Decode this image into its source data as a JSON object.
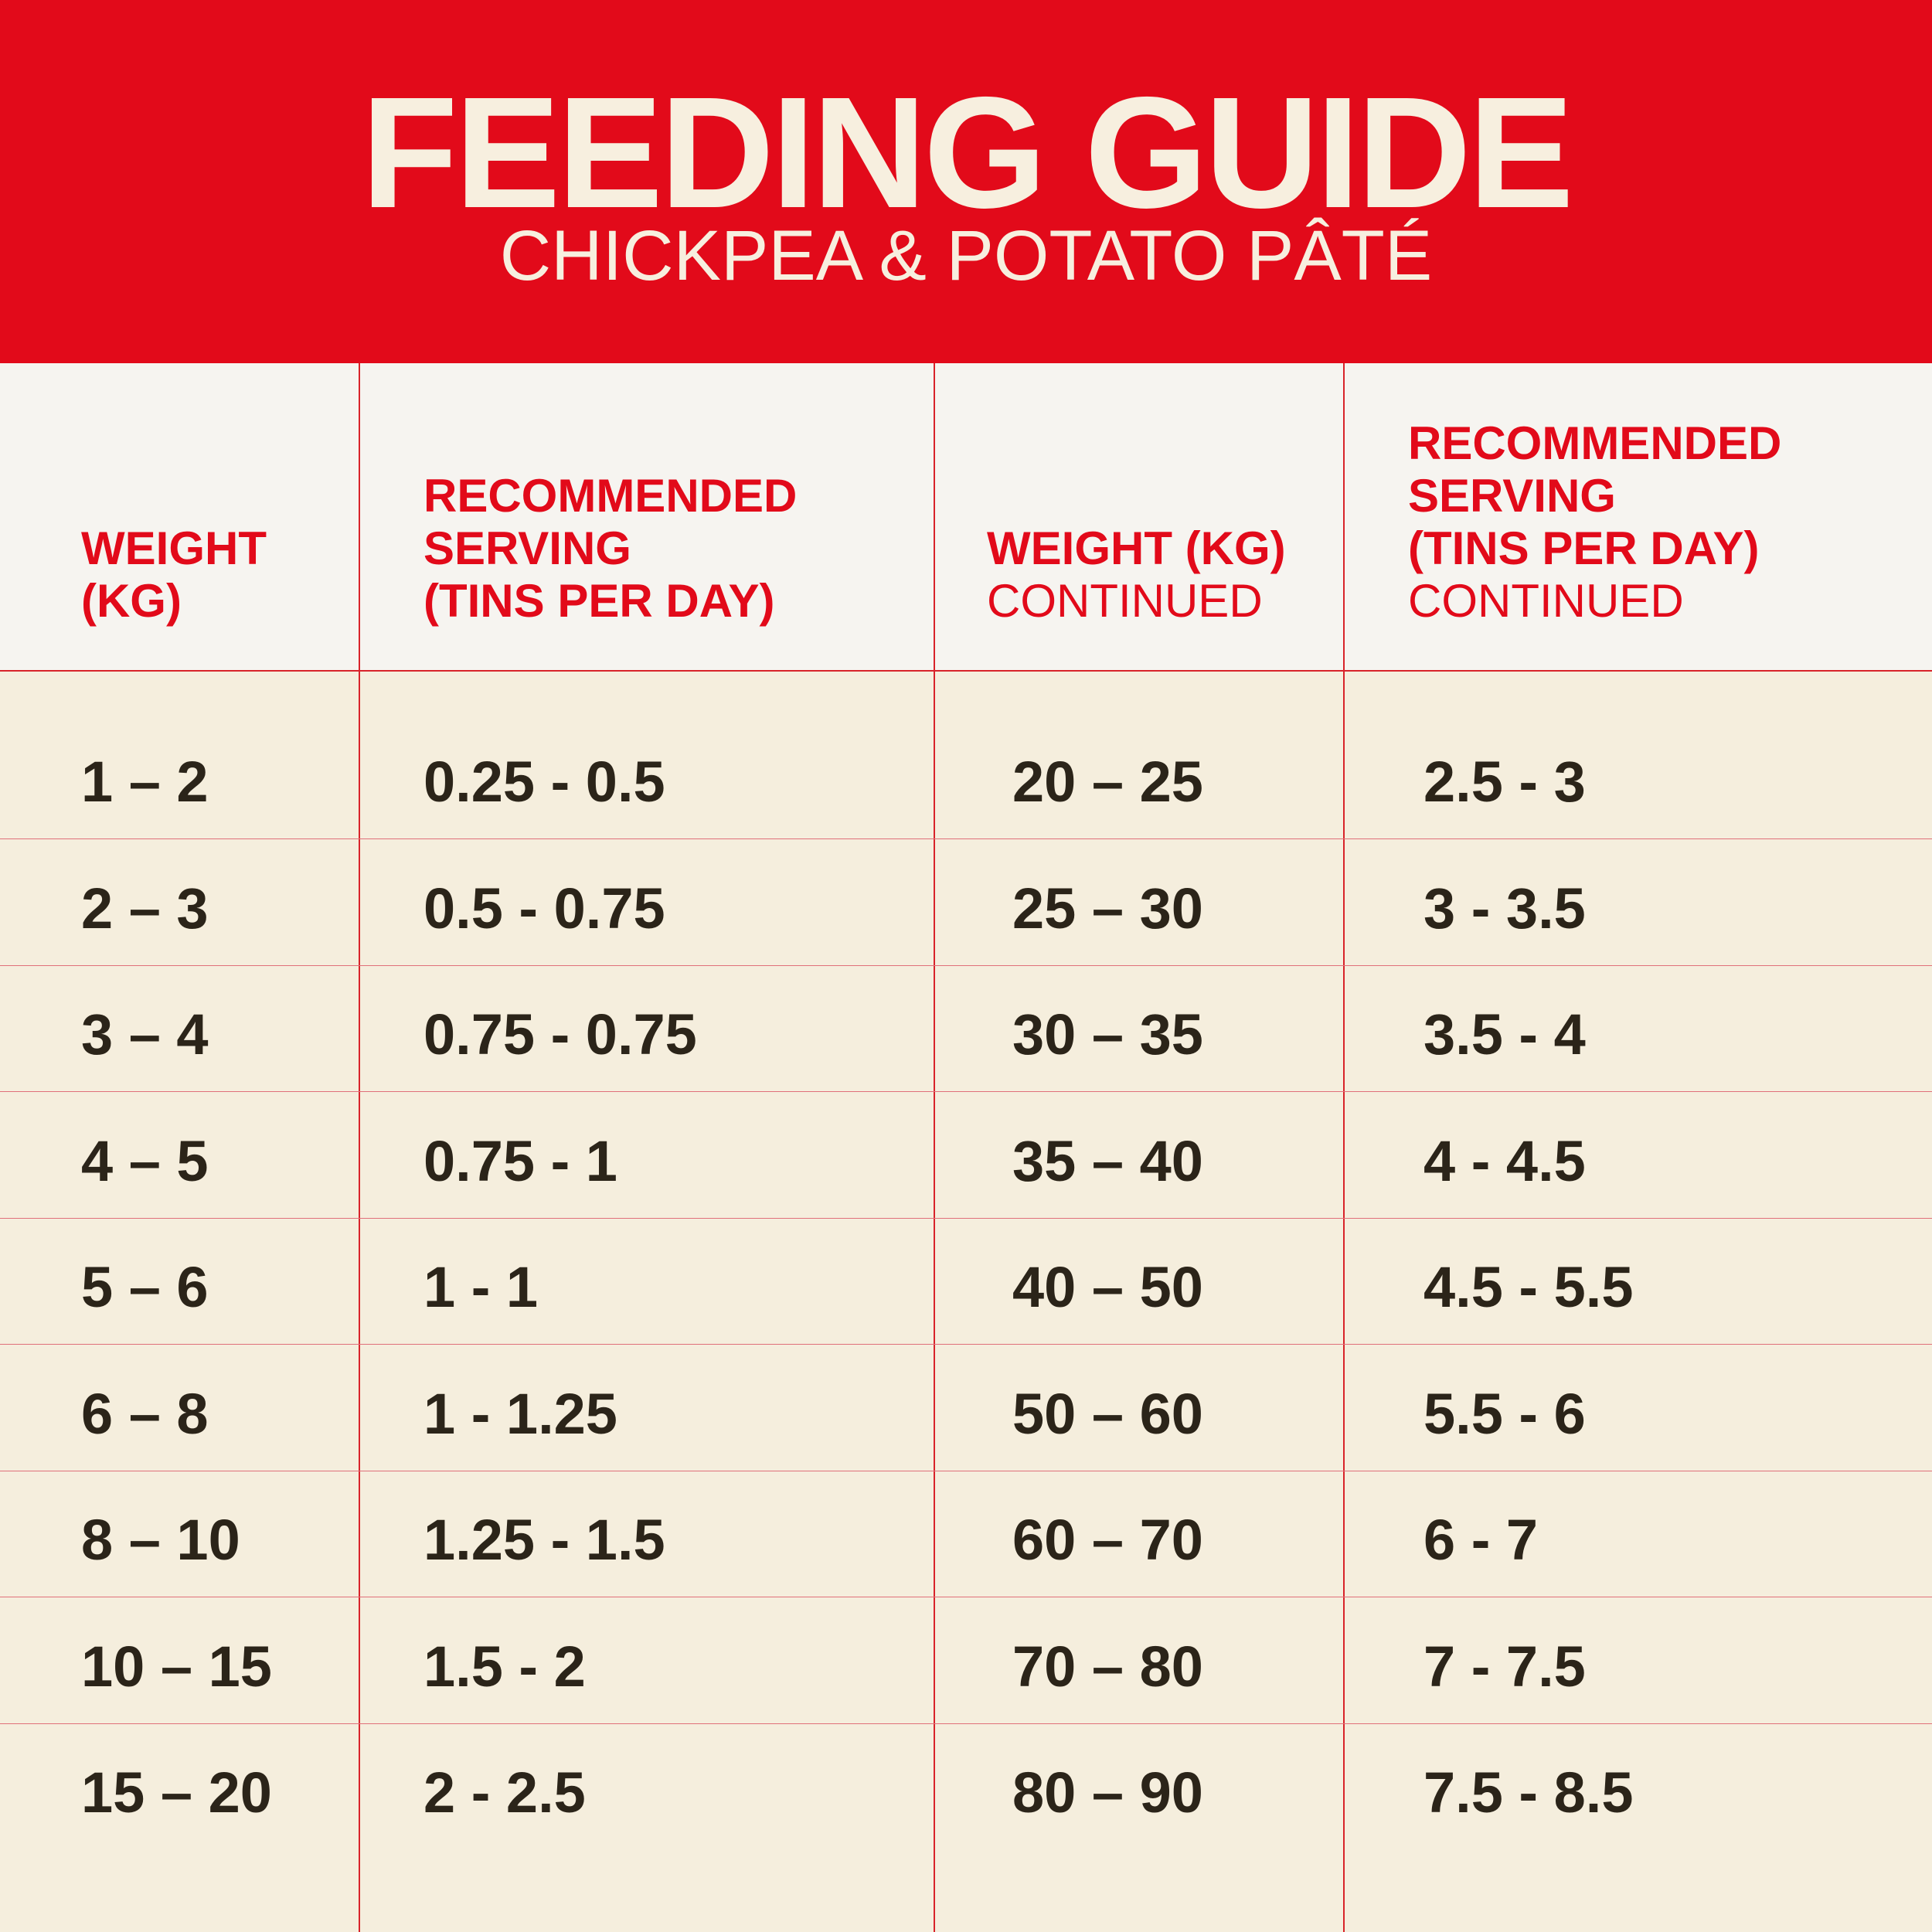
{
  "banner": {
    "title": "FEEDING GUIDE",
    "subtitle": "CHICKPEA & POTATO PÂTÉ"
  },
  "headers": {
    "col1": [
      "WEIGHT",
      "(KG)"
    ],
    "col2": [
      "RECOMMENDED",
      "SERVING",
      "(TINS PER DAY)"
    ],
    "col3": [
      "WEIGHT (KG)"
    ],
    "col3_continued": "CONTINUED",
    "col4": [
      "RECOMMENDED",
      "SERVING",
      "(TINS PER DAY)"
    ],
    "col4_continued": "CONTINUED"
  },
  "rows": [
    {
      "w1": "1 – 2",
      "s1": "0.25 - 0.5",
      "w2": "20 – 25",
      "s2": "2.5 - 3"
    },
    {
      "w1": "2 – 3",
      "s1": "0.5 - 0.75",
      "w2": "25 – 30",
      "s2": "3 - 3.5"
    },
    {
      "w1": "3 – 4",
      "s1": "0.75 - 0.75",
      "w2": "30 – 35",
      "s2": "3.5 - 4"
    },
    {
      "w1": "4 – 5",
      "s1": "0.75 - 1",
      "w2": "35 – 40",
      "s2": "4 - 4.5"
    },
    {
      "w1": "5 – 6",
      "s1": "1 - 1",
      "w2": "40 – 50",
      "s2": "4.5 - 5.5"
    },
    {
      "w1": "6 – 8",
      "s1": "1 - 1.25",
      "w2": "50 – 60",
      "s2": "5.5 - 6"
    },
    {
      "w1": "8 – 10",
      "s1": "1.25 - 1.5",
      "w2": "60 – 70",
      "s2": "6 - 7"
    },
    {
      "w1": "10 – 15",
      "s1": "1.5 - 2",
      "w2": "70 – 80",
      "s2": "7 - 7.5"
    },
    {
      "w1": "15 – 20",
      "s1": "2 - 2.5",
      "w2": "80 – 90",
      "s2": "7.5 - 8.5"
    }
  ],
  "colors": {
    "banner_red": "#e20a1a",
    "cream_text": "#f7efdf",
    "body_bg": "#f5eedd",
    "value_text": "#2b2419"
  }
}
